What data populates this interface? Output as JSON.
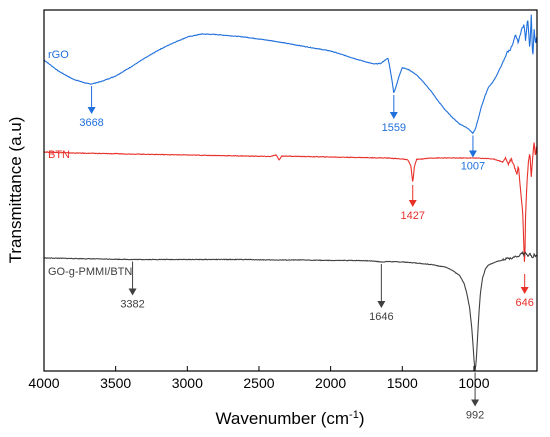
{
  "chart_data": {
    "type": "line",
    "title": "",
    "xlabel": "Wavenumber (cm",
    "xlabel_sup": "-1",
    "xlabel_close": ")",
    "ylabel": "Transmittance (a.u)",
    "xlim": [
      4000,
      560
    ],
    "x_reversed": true,
    "xticks": [
      4000,
      3500,
      3000,
      2500,
      2000,
      1500,
      1000
    ],
    "xtick_labels": [
      "4000",
      "3500",
      "3000",
      "2500",
      "2000",
      "1500",
      "1000"
    ],
    "grid": false,
    "legend": "none",
    "series": [
      {
        "name": "rGO",
        "color": "#1f6fdc",
        "points": [
          [
            4000,
            0.0
          ],
          [
            3900,
            -0.022
          ],
          [
            3800,
            -0.038
          ],
          [
            3700,
            -0.047
          ],
          [
            3668,
            -0.048
          ],
          [
            3600,
            -0.043
          ],
          [
            3500,
            -0.032
          ],
          [
            3400,
            -0.015
          ],
          [
            3300,
            0.003
          ],
          [
            3200,
            0.02
          ],
          [
            3100,
            0.034
          ],
          [
            3000,
            0.046
          ],
          [
            2900,
            0.052
          ],
          [
            2800,
            0.051
          ],
          [
            2600,
            0.046
          ],
          [
            2400,
            0.038
          ],
          [
            2200,
            0.028
          ],
          [
            2000,
            0.018
          ],
          [
            1900,
            0.009
          ],
          [
            1800,
            0.0
          ],
          [
            1700,
            -0.008
          ],
          [
            1650,
            -0.007
          ],
          [
            1620,
            0.0
          ],
          [
            1600,
            0.003
          ],
          [
            1590,
            -0.01
          ],
          [
            1575,
            -0.035
          ],
          [
            1559,
            -0.066
          ],
          [
            1540,
            -0.05
          ],
          [
            1520,
            -0.03
          ],
          [
            1500,
            -0.015
          ],
          [
            1450,
            -0.02
          ],
          [
            1400,
            -0.03
          ],
          [
            1350,
            -0.045
          ],
          [
            1300,
            -0.062
          ],
          [
            1250,
            -0.082
          ],
          [
            1200,
            -0.1
          ],
          [
            1150,
            -0.115
          ],
          [
            1100,
            -0.128
          ],
          [
            1050,
            -0.135
          ],
          [
            1030,
            -0.14
          ],
          [
            1007,
            -0.147
          ],
          [
            990,
            -0.138
          ],
          [
            970,
            -0.118
          ],
          [
            950,
            -0.095
          ],
          [
            920,
            -0.07
          ],
          [
            900,
            -0.055
          ],
          [
            870,
            -0.045
          ],
          [
            840,
            -0.03
          ],
          [
            810,
            -0.012
          ],
          [
            790,
            0.0
          ],
          [
            770,
            0.015
          ],
          [
            750,
            0.02
          ],
          [
            730,
            0.03
          ],
          [
            710,
            0.05
          ],
          [
            690,
            0.035
          ],
          [
            670,
            0.06
          ],
          [
            650,
            0.07
          ],
          [
            640,
            0.04
          ],
          [
            625,
            0.085
          ],
          [
            610,
            0.02
          ],
          [
            600,
            0.09
          ],
          [
            590,
            0.0
          ],
          [
            580,
            0.06
          ],
          [
            570,
            0.03
          ],
          [
            562,
            0.05
          ]
        ],
        "peaks": [
          {
            "x": 3668,
            "label": "3668"
          },
          {
            "x": 1559,
            "label": "1559"
          },
          {
            "x": 1007,
            "label": "1007"
          }
        ]
      },
      {
        "name": "BTN",
        "color": "#e8302a",
        "points": [
          [
            4000,
            0.0
          ],
          [
            3800,
            -0.002
          ],
          [
            3600,
            -0.003
          ],
          [
            3400,
            -0.004
          ],
          [
            3200,
            -0.005
          ],
          [
            3000,
            -0.006
          ],
          [
            2800,
            -0.007
          ],
          [
            2600,
            -0.008
          ],
          [
            2420,
            -0.009
          ],
          [
            2380,
            -0.006
          ],
          [
            2360,
            -0.016
          ],
          [
            2340,
            -0.008
          ],
          [
            2200,
            -0.009
          ],
          [
            2000,
            -0.01
          ],
          [
            1800,
            -0.011
          ],
          [
            1600,
            -0.012
          ],
          [
            1500,
            -0.014
          ],
          [
            1460,
            -0.016
          ],
          [
            1440,
            -0.028
          ],
          [
            1427,
            -0.062
          ],
          [
            1415,
            -0.028
          ],
          [
            1400,
            -0.015
          ],
          [
            1300,
            -0.012
          ],
          [
            1200,
            -0.012
          ],
          [
            1100,
            -0.012
          ],
          [
            1000,
            -0.012
          ],
          [
            900,
            -0.013
          ],
          [
            850,
            -0.015
          ],
          [
            800,
            -0.02
          ],
          [
            780,
            -0.012
          ],
          [
            760,
            -0.024
          ],
          [
            740,
            -0.014
          ],
          [
            720,
            -0.028
          ],
          [
            700,
            -0.045
          ],
          [
            690,
            -0.025
          ],
          [
            680,
            -0.06
          ],
          [
            670,
            -0.09
          ],
          [
            660,
            -0.12
          ],
          [
            650,
            -0.2
          ],
          [
            646,
            -0.24
          ],
          [
            640,
            -0.13
          ],
          [
            630,
            -0.06
          ],
          [
            620,
            -0.02
          ],
          [
            610,
            0.0
          ],
          [
            600,
            -0.05
          ],
          [
            590,
            -0.01
          ],
          [
            580,
            0.02
          ],
          [
            570,
            -0.01
          ],
          [
            562,
            0.02
          ]
        ],
        "peaks": [
          {
            "x": 1427,
            "label": "1427"
          },
          {
            "x": 646,
            "label": "646"
          }
        ]
      },
      {
        "name": "GO-g-PMMI/BTN",
        "color": "#404040",
        "points": [
          [
            4000,
            0.0
          ],
          [
            3800,
            -0.001
          ],
          [
            3600,
            -0.002
          ],
          [
            3382,
            -0.003
          ],
          [
            3200,
            -0.003
          ],
          [
            3000,
            -0.003
          ],
          [
            2800,
            -0.003
          ],
          [
            2600,
            -0.003
          ],
          [
            2400,
            -0.004
          ],
          [
            2200,
            -0.004
          ],
          [
            2000,
            -0.005
          ],
          [
            1800,
            -0.005
          ],
          [
            1700,
            -0.006
          ],
          [
            1646,
            -0.008
          ],
          [
            1600,
            -0.007
          ],
          [
            1500,
            -0.008
          ],
          [
            1400,
            -0.01
          ],
          [
            1300,
            -0.013
          ],
          [
            1200,
            -0.018
          ],
          [
            1150,
            -0.025
          ],
          [
            1100,
            -0.035
          ],
          [
            1070,
            -0.05
          ],
          [
            1050,
            -0.07
          ],
          [
            1030,
            -0.1
          ],
          [
            1015,
            -0.14
          ],
          [
            1005,
            -0.18
          ],
          [
            998,
            -0.21
          ],
          [
            992,
            -0.225
          ],
          [
            985,
            -0.21
          ],
          [
            975,
            -0.16
          ],
          [
            965,
            -0.11
          ],
          [
            955,
            -0.07
          ],
          [
            940,
            -0.04
          ],
          [
            920,
            -0.022
          ],
          [
            900,
            -0.014
          ],
          [
            850,
            -0.008
          ],
          [
            800,
            -0.004
          ],
          [
            760,
            0.0
          ],
          [
            740,
            -0.002
          ],
          [
            720,
            0.003
          ],
          [
            700,
            0.002
          ],
          [
            680,
            0.006
          ],
          [
            660,
            0.01
          ],
          [
            650,
            0.006
          ],
          [
            640,
            0.012
          ],
          [
            630,
            0.008
          ],
          [
            620,
            0.002
          ],
          [
            610,
            0.01
          ],
          [
            600,
            0.005
          ],
          [
            590,
            0.0
          ],
          [
            580,
            0.008
          ],
          [
            570,
            0.003
          ],
          [
            562,
            0.006
          ]
        ],
        "peaks": [
          {
            "x": 3382,
            "label": "3382"
          },
          {
            "x": 1646,
            "label": "1646"
          },
          {
            "x": 992,
            "label": "992"
          }
        ]
      }
    ]
  }
}
